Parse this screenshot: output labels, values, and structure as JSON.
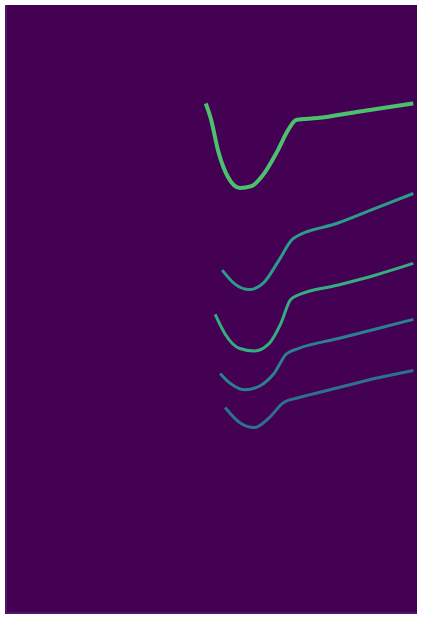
{
  "chart_data": {
    "type": "line",
    "xlim": [
      0,
      100
    ],
    "ylim": [
      0,
      100
    ],
    "tick_labels": false,
    "grid": false,
    "series": [
      {
        "color": "#49c16d",
        "x": [
          48.6,
          49.8,
          51.7,
          54.0,
          56.9,
          59.7,
          62.6,
          65.9,
          68.7,
          70.6,
          75.8,
          85.3,
          99.1
        ],
        "values": [
          83.8,
          81.4,
          75.8,
          71.7,
          69.9,
          70.2,
          72.1,
          75.8,
          79.5,
          81.1,
          81.4,
          82.4,
          83.8
        ]
      },
      {
        "color": "#2a9d8a",
        "x": [
          52.6,
          55.7,
          59.2,
          62.8,
          66.4,
          69.9,
          80.6,
          90.0,
          99.1
        ],
        "values": [
          56.4,
          54.1,
          53.2,
          54.4,
          58.0,
          61.6,
          64.1,
          66.6,
          69.0
        ]
      },
      {
        "color": "#34ae80",
        "x": [
          50.9,
          53.3,
          56.9,
          60.4,
          64.0,
          66.8,
          69.2,
          71.1,
          80.6,
          90.0,
          99.1
        ],
        "values": [
          49.1,
          45.9,
          43.5,
          43.1,
          44.3,
          47.5,
          51.5,
          52.3,
          53.9,
          55.6,
          57.5
        ]
      },
      {
        "color": "#2a808e",
        "x": [
          52.1,
          54.5,
          58.1,
          61.6,
          65.2,
          68.2,
          71.1,
          80.6,
          90.0,
          99.1
        ],
        "values": [
          39.4,
          37.8,
          36.7,
          37.3,
          39.4,
          42.6,
          43.5,
          45.1,
          46.7,
          48.3
        ]
      },
      {
        "color": "#2c728e",
        "x": [
          53.3,
          56.9,
          60.4,
          64.0,
          67.5,
          71.1,
          80.6,
          90.0,
          99.1
        ],
        "values": [
          33.8,
          31.3,
          30.5,
          32.1,
          34.6,
          35.4,
          37.0,
          38.6,
          39.9
        ]
      }
    ]
  }
}
